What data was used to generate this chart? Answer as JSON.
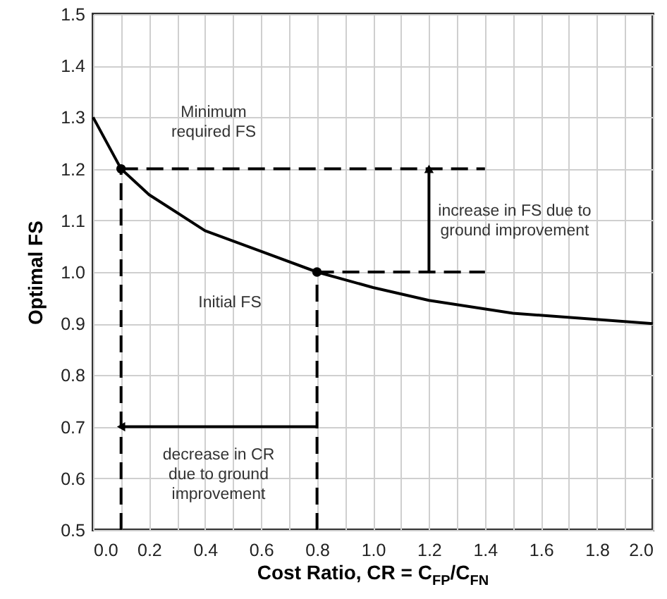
{
  "chart_data": {
    "type": "line",
    "xlabel": "Cost Ratio, CR = C$_{FP}$/C$_{FN}$",
    "ylabel": "Optimal FS",
    "xlim": [
      0,
      2
    ],
    "ylim": [
      0.5,
      1.5
    ],
    "xticks": [
      {
        "value": 0,
        "label": "0.0"
      },
      {
        "value": 0.1,
        "label": null
      },
      0.2,
      {
        "value": 0.3,
        "label": null
      },
      0.4,
      {
        "value": 0.5,
        "label": null
      },
      0.6,
      {
        "value": 0.7,
        "label": null
      },
      0.8,
      {
        "value": 0.9,
        "label": null
      },
      {
        "value": 1,
        "label": "1.0"
      },
      {
        "value": 1.1,
        "label": null
      },
      1.2,
      {
        "value": 1.3,
        "label": null
      },
      1.4,
      {
        "value": 1.5,
        "label": null
      },
      1.6,
      {
        "value": 1.7,
        "label": null
      },
      1.8,
      {
        "value": 1.9,
        "label": null
      },
      {
        "value": 2,
        "label": "2.0"
      }
    ],
    "yticks": [
      0.5,
      0.6,
      0.7,
      0.8,
      0.9,
      {
        "value": 1,
        "label": "1.0"
      },
      1.1,
      1.2,
      1.3,
      1.4,
      1.5
    ],
    "grid": true,
    "series": [
      {
        "color": "#000000",
        "line_style": "solid",
        "x": [
          0,
          0.1,
          0.2,
          0.4,
          0.6,
          0.8,
          1.0,
          1.2,
          1.5,
          2.0
        ],
        "values": [
          1.3,
          1.2,
          1.15,
          1.08,
          1.04,
          1.0,
          0.97,
          0.945,
          0.92,
          0.9
        ]
      },
      {
        "type": "scatter",
        "color": "#000000",
        "marker": "circle",
        "x": [
          0.1,
          0.8
        ],
        "values": [
          1.2,
          1.0
        ]
      },
      {
        "color": "#000000",
        "line_style": "dashed",
        "x": [
          0.1,
          1.4
        ],
        "values": [
          1.2,
          1.2
        ]
      },
      {
        "color": "#000000",
        "line_style": "dashed",
        "x": [
          0.8,
          1.4
        ],
        "values": [
          1.0,
          1.0
        ]
      },
      {
        "color": "#000000",
        "line_style": "dashed",
        "x": [
          0.1,
          0.1
        ],
        "values": [
          0.5,
          1.2
        ]
      },
      {
        "color": "#000000",
        "line_style": "dashed",
        "x": [
          0.8,
          0.8
        ],
        "values": [
          0.5,
          1.0
        ]
      },
      {
        "color": "#000000",
        "line_style": "solid",
        "marker": "triangle",
        "x": [
          1.2,
          1.2
        ],
        "values": [
          1.0,
          1.2
        ]
      },
      {
        "color": "#000000",
        "line_style": "solid",
        "marker": "triangle",
        "x": [
          0.8,
          0.1
        ],
        "values": [
          0.7,
          0.7
        ]
      }
    ],
    "annotations": [
      "Minimum\nrequired FS",
      "Initial FS",
      "increase in FS due to\nground improvement",
      "decrease in CR\ndue to ground\nimprovement"
    ]
  }
}
